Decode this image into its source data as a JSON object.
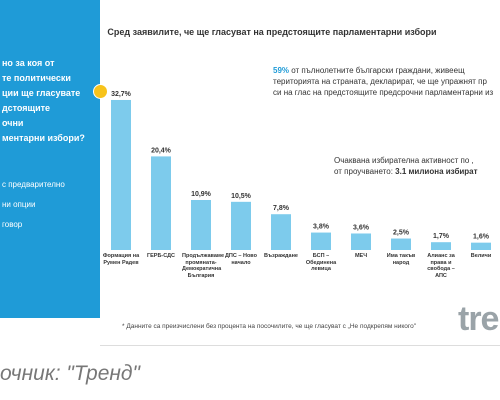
{
  "sidebar": {
    "question_lines": [
      "но за коя от",
      "те политически",
      "ции ще гласувате",
      "дстоящите",
      "очни",
      "ментарни избори?"
    ],
    "note_lines": [
      "с предварително",
      "ни опции",
      "говор"
    ]
  },
  "chart_data": {
    "type": "bar",
    "title": "Сред заявилите, че ще гласуват на предстоящите парламентарни избори",
    "annotations": [
      {
        "bold": "59%",
        "lines": [
          "от пълнолетните български граждани, живеещ",
          "територията на страната, декларират, че ще упражнят пр",
          "си на глас на предстоящите предсрочни парламентарни из"
        ]
      },
      {
        "lines": [
          "Очаквана избирателна активност по ,",
          "от проучването:"
        ],
        "bold": "3.1 милиона избират"
      }
    ],
    "categories": [
      "Формация на Румен Радев",
      "ГЕРБ-СДС",
      "Продължаваме промяната-Демократична България",
      "ДПС – Ново начало",
      "Възраждане",
      "БСП – Обединена левица",
      "МЕЧ",
      "Има такъв народ",
      "Алианс за права и свобода – АПС",
      "Величи"
    ],
    "values": [
      32.7,
      20.4,
      10.9,
      10.5,
      7.8,
      3.8,
      3.6,
      2.5,
      1.7,
      1.6
    ],
    "value_labels": [
      "32,7%",
      "20,4%",
      "10,9%",
      "10,5%",
      "7,8%",
      "3,8%",
      "3,6%",
      "2,5%",
      "1,7%",
      "1,6%"
    ],
    "color": "#7dcbec",
    "ylim": [
      0,
      34
    ],
    "footnote": "* Данните са преизчислени без процента на посочилите, че ще гласуват с „Не подкрепям никого\""
  },
  "logo": "tre",
  "caption": "очник: \"Тренд\""
}
